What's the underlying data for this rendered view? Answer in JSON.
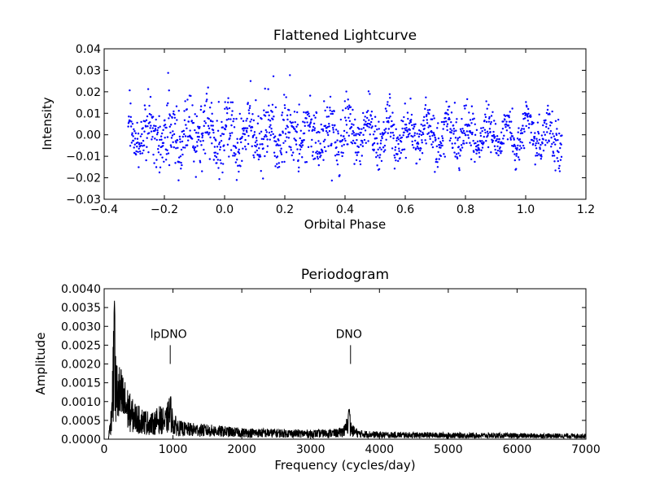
{
  "chart_data": [
    {
      "type": "scatter",
      "title": "Flattened Lightcurve",
      "xlabel": "Orbital Phase",
      "ylabel": "Intensity",
      "xlim": [
        -0.4,
        1.2
      ],
      "ylim": [
        -0.03,
        0.04
      ],
      "xticks": [
        "−0.4",
        "−0.2",
        "0.0",
        "0.2",
        "0.4",
        "0.6",
        "0.8",
        "1.0",
        "1.2"
      ],
      "yticks": [
        "−0.03",
        "−0.02",
        "−0.01",
        "0.00",
        "0.01",
        "0.02",
        "0.03",
        "0.04"
      ],
      "x_range": [
        -0.32,
        1.12
      ],
      "y_typical_range": [
        -0.02,
        0.02
      ],
      "y_extremes": [
        -0.027,
        0.031
      ],
      "point_color": "#0000ff",
      "grid": false
    },
    {
      "type": "line",
      "title": "Periodogram",
      "xlabel": "Frequency (cycles/day)",
      "ylabel": "Amplitude",
      "xlim": [
        0,
        7000
      ],
      "ylim": [
        0,
        0.004
      ],
      "xticks": [
        "0",
        "1000",
        "2000",
        "3000",
        "4000",
        "5000",
        "6000",
        "7000"
      ],
      "yticks": [
        "0.0000",
        "0.0005",
        "0.0010",
        "0.0015",
        "0.0020",
        "0.0025",
        "0.0030",
        "0.0035",
        "0.0040"
      ],
      "envelope": {
        "x": [
          60,
          100,
          130,
          150,
          170,
          200,
          250,
          300,
          400,
          500,
          600,
          700,
          800,
          900,
          960,
          1000,
          1100,
          1200,
          1500,
          2000,
          2500,
          3000,
          3400,
          3500,
          3560,
          3600,
          3700,
          4000,
          5000,
          6000,
          7000
        ],
        "y": [
          0.0,
          0.0009,
          0.0026,
          0.0037,
          0.0022,
          0.0021,
          0.0019,
          0.0016,
          0.0011,
          0.0009,
          0.0008,
          0.0007,
          0.0009,
          0.0008,
          0.0013,
          0.0007,
          0.0005,
          0.00045,
          0.0004,
          0.0003,
          0.00028,
          0.00025,
          0.00028,
          0.0004,
          0.00085,
          0.0004,
          0.00025,
          0.0002,
          0.00018,
          0.00016,
          0.00015
        ]
      },
      "annotations": [
        {
          "text": "lpDNO",
          "x": 960,
          "y_from": 0.002,
          "y_to": 0.0025
        },
        {
          "text": "DNO",
          "x": 3580,
          "y_from": 0.002,
          "y_to": 0.0025
        }
      ],
      "line_color": "#000000",
      "grid": false
    }
  ]
}
